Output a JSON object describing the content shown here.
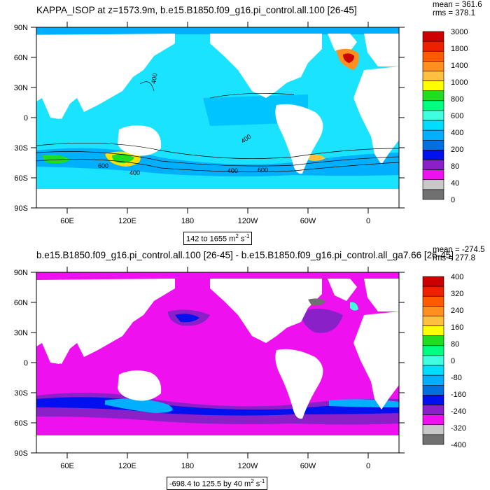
{
  "panels": [
    {
      "title": "KAPPA_ISOP at z=1573.9m, b.e15.B1850.f09_g16.pi_control.all.100 [26-45]",
      "stats": {
        "mean": "mean = 361.6",
        "rms": "rms = 378.1"
      },
      "range_label": {
        "text": "142 to 1655 m",
        "sup": "2",
        "suffix": " s",
        "sup2": "-1"
      },
      "colorbar": {
        "labels": [
          "3000",
          "1800",
          "1400",
          "1000",
          "800",
          "600",
          "400",
          "200",
          "80",
          "40",
          "0"
        ],
        "colors": [
          "#cc0000",
          "#ee2000",
          "#ff5a00",
          "#ff9020",
          "#ffc040",
          "#ffff00",
          "#20dd20",
          "#00ff80",
          "#40ffe0",
          "#00ddff",
          "#00b0ff",
          "#0070e0",
          "#0010ee",
          "#8a20c8",
          "#ee10ee",
          "#c8c8c8",
          "#707070"
        ]
      },
      "contour_labels": [
        "400",
        "400",
        "400",
        "400",
        "600",
        "600"
      ]
    },
    {
      "title": "b.e15.B1850.f09_g16.pi_control.all.100 [26-45] - b.e15.B1850.f09_g16.pi_control.all_ga7.66 [26-45]",
      "stats": {
        "mean": "mean = -274.5",
        "rms": "rms = 277.8"
      },
      "range_label": {
        "text": "-698.4 to 125.5 by 40 m",
        "sup": "2",
        "suffix": " s",
        "sup2": "-1"
      },
      "colorbar": {
        "labels": [
          "400",
          "320",
          "240",
          "160",
          "80",
          "0",
          "-80",
          "-160",
          "-240",
          "-320",
          "-400"
        ],
        "colors": [
          "#cc0000",
          "#ee2000",
          "#ff5a00",
          "#ff9020",
          "#ffc040",
          "#ffff00",
          "#20dd20",
          "#00ff80",
          "#40ffe0",
          "#00ddff",
          "#00b0ff",
          "#0070e0",
          "#0010ee",
          "#8a20c8",
          "#ee10ee",
          "#c8c8c8",
          "#707070"
        ]
      }
    }
  ],
  "axes": {
    "lat_ticks": [
      "90N",
      "60N",
      "30N",
      "0",
      "30S",
      "60S",
      "90S"
    ],
    "lon_ticks": [
      "60E",
      "120E",
      "180",
      "120W",
      "60W",
      "0"
    ]
  },
  "colors": {
    "ocean_top": "#19e3ff",
    "ocean_top_high": "#00b0ff",
    "ocean_bottom": "#ee10ee",
    "ocean_bottom_low": "#8a20c8",
    "land": "#ffffff"
  }
}
